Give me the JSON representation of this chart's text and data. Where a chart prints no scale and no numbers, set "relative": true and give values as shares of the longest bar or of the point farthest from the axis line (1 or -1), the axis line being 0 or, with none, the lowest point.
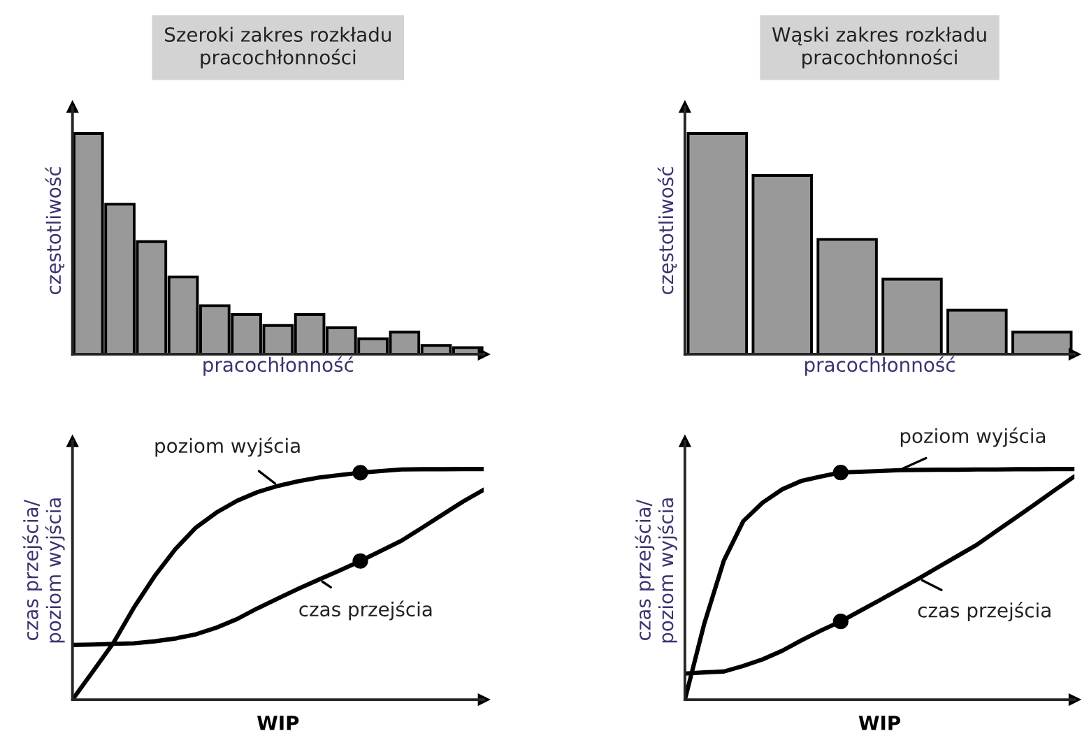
{
  "chart_data": [
    {
      "type": "bar",
      "title": "Szeroki zakres rozkładu\npracochłonności",
      "xlabel": "pracochłonność",
      "ylabel": "częstotliwość",
      "relative": true,
      "tick_labels": false,
      "categories": [
        null,
        null,
        null,
        null,
        null,
        null,
        null,
        null,
        null,
        null,
        null,
        null,
        null
      ],
      "series": [
        {
          "color": "#999999",
          "values": [
            1,
            0.68,
            0.51,
            0.35,
            0.22,
            0.18,
            0.13,
            0.18,
            0.12,
            0.07,
            0.1,
            0.04,
            0.03
          ]
        }
      ]
    },
    {
      "type": "bar",
      "title": "Wąski zakres rozkładu\npracochłonności",
      "xlabel": "pracochłonność",
      "ylabel": "częstotliwość",
      "relative": true,
      "tick_labels": false,
      "categories": [
        null,
        null,
        null,
        null,
        null,
        null
      ],
      "series": [
        {
          "color": "#999999",
          "values": [
            1,
            0.81,
            0.52,
            0.34,
            0.2,
            0.1
          ]
        }
      ]
    },
    {
      "type": "line",
      "xlabel": "WIP",
      "ylabel": "czas przejścia/\npoziom wyjścia",
      "relative": true,
      "tick_labels": false,
      "line_style": "solid",
      "categories": [
        null,
        null,
        null,
        null,
        null,
        null,
        null,
        null,
        null,
        null,
        null,
        null,
        null,
        null,
        null,
        null,
        null,
        null,
        null,
        null,
        null
      ],
      "series": [
        {
          "color": "#000000",
          "values": [
            0,
            0.123,
            0.247,
            0.401,
            0.536,
            0.652,
            0.746,
            0.811,
            0.862,
            0.9,
            0.927,
            0.947,
            0.963,
            0.974,
            0.984,
            0.991,
            0.998,
            0.999,
            0.999,
            1,
            1
          ]
        },
        {
          "color": "#000000",
          "values": [
            0.237,
            0.239,
            0.242,
            0.244,
            0.253,
            0.265,
            0.283,
            0.312,
            0.349,
            0.396,
            0.439,
            0.481,
            0.521,
            0.56,
            0.601,
            0.645,
            0.689,
            0.745,
            0.802,
            0.859,
            0.91
          ]
        }
      ],
      "annotations": [
        "poziom wyjścia",
        "czas przejścia"
      ]
    },
    {
      "type": "line",
      "xlabel": "WIP",
      "ylabel": "czas przejścia/\npoziom wyjścia",
      "relative": true,
      "tick_labels": false,
      "line_style": "solid",
      "categories": [
        null,
        null,
        null,
        null,
        null,
        null,
        null,
        null,
        null,
        null,
        null,
        null,
        null,
        null,
        null,
        null,
        null,
        null,
        null,
        null,
        null
      ],
      "series": [
        {
          "color": "#000000",
          "values": [
            0,
            0.331,
            0.603,
            0.774,
            0.855,
            0.912,
            0.949,
            0.968,
            0.985,
            0.988,
            0.991,
            0.995,
            0.996,
            0.997,
            0.997,
            0.998,
            0.998,
            0.999,
            0.999,
            1,
            1
          ]
        },
        {
          "color": "#000000",
          "values": [
            0.113,
            0.118,
            0.122,
            0.146,
            0.175,
            0.212,
            0.258,
            0.3,
            0.339,
            0.385,
            0.431,
            0.478,
            0.525,
            0.574,
            0.623,
            0.672,
            0.731,
            0.79,
            0.849,
            0.909,
            0.968
          ]
        }
      ],
      "annotations": [
        "poziom wyjścia",
        "czas przejścia"
      ]
    }
  ]
}
